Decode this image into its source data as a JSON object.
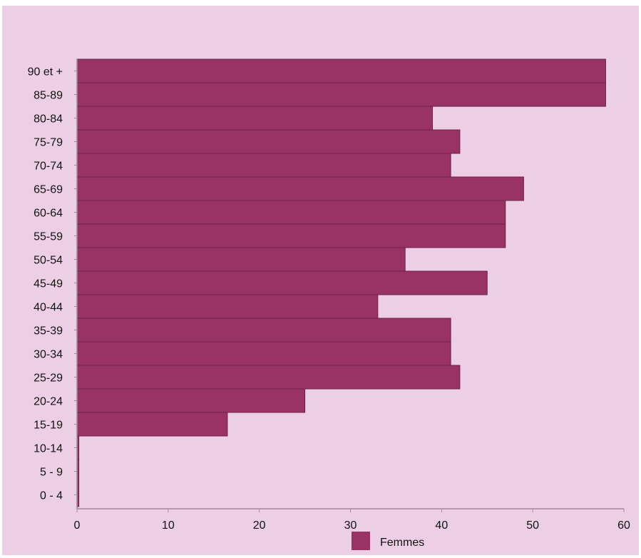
{
  "chart_data": {
    "type": "bar",
    "orientation": "horizontal",
    "categories": [
      "90 et +",
      "85-89",
      "80-84",
      "75-79",
      "70-74",
      "65-69",
      "60-64",
      "55-59",
      "50-54",
      "45-49",
      "40-44",
      "35-39",
      "30-34",
      "25-29",
      "20-24",
      "15-19",
      "10-14",
      "5 - 9",
      "0 - 4"
    ],
    "series": [
      {
        "name": "Femmes",
        "color": "#993366",
        "values": [
          58,
          58,
          39,
          42,
          41,
          49,
          47,
          47,
          36,
          45,
          33,
          41,
          41,
          42,
          25,
          16.5,
          0.2,
          0.2,
          0.2
        ]
      }
    ],
    "xlim": [
      0,
      60
    ],
    "xticks": [
      "0",
      "10",
      "20",
      "30",
      "40",
      "50",
      "60"
    ],
    "grid": false,
    "legend_position": "bottom",
    "colors": {
      "background": "#edcfe5",
      "bar": "#993366",
      "bar_edge": "#6b2347",
      "axis": "#a08a98"
    }
  }
}
